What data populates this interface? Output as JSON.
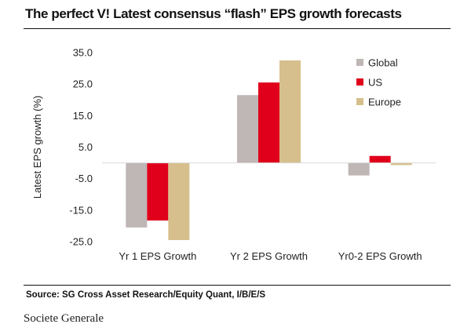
{
  "header": {
    "title": "The perfect V! Latest consensus “flash” EPS growth forecasts"
  },
  "source": "Source: SG Cross Asset Research/Equity Quant, I/B/E/S",
  "footer": "Societe Generale",
  "chart_data": {
    "type": "bar",
    "title": "The perfect V! Latest consensus “flash” EPS growth forecasts",
    "xlabel": "",
    "ylabel": "Latest EPS growth  (%)",
    "ylim": [
      -25,
      35
    ],
    "yticks": [
      35,
      25,
      15,
      5,
      -5,
      -15,
      -25
    ],
    "ytick_labels": [
      "35.0",
      "25.0",
      "15.0",
      "5.0",
      "-5.0",
      "-15.0",
      "-25.0"
    ],
    "categories": [
      "Yr 1 EPS Growth",
      "Yr 2 EPS Growth",
      "Yr0-2 EPS Growth"
    ],
    "series": [
      {
        "name": "Global",
        "color": "#bfb6b6",
        "values": [
          -20.5,
          21.5,
          -4.0
        ]
      },
      {
        "name": "US",
        "color": "#e0001b",
        "values": [
          -18.3,
          25.5,
          2.2
        ]
      },
      {
        "name": "Europe",
        "color": "#d6bf8c",
        "values": [
          -24.5,
          32.5,
          -0.7
        ]
      }
    ],
    "grid": false,
    "legend_position": "top-right"
  }
}
